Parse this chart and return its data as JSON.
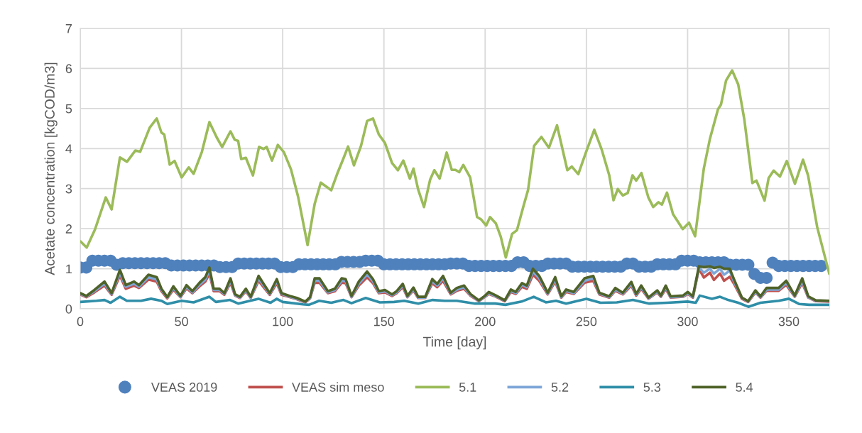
{
  "chart_data": {
    "type": "line",
    "xlabel": "Time [day]",
    "ylabel": "Acetate concentration [kgCOD/m3]",
    "xlim": [
      0,
      370
    ],
    "xticks": [
      0,
      50,
      100,
      150,
      200,
      250,
      300,
      350
    ],
    "ylim": [
      0,
      7
    ],
    "yticks": [
      0,
      1,
      2,
      3,
      4,
      5,
      6,
      7
    ],
    "grid": true,
    "legend": "bottom",
    "line_style": "solid",
    "series": [
      {
        "name": "VEAS 2019",
        "type": "scatter",
        "marker": "circle",
        "color": "#4f81bd",
        "x": [
          0,
          3,
          6,
          9,
          12,
          15,
          18,
          21,
          24,
          27,
          30,
          33,
          36,
          39,
          42,
          45,
          48,
          51,
          54,
          57,
          60,
          63,
          66,
          69,
          72,
          75,
          78,
          81,
          84,
          87,
          90,
          93,
          96,
          99,
          102,
          105,
          108,
          111,
          114,
          117,
          120,
          123,
          126,
          129,
          132,
          135,
          138,
          141,
          144,
          147,
          150,
          153,
          156,
          159,
          162,
          165,
          168,
          171,
          174,
          177,
          180,
          183,
          186,
          189,
          192,
          195,
          198,
          201,
          204,
          207,
          210,
          213,
          216,
          219,
          222,
          225,
          228,
          231,
          234,
          237,
          240,
          243,
          246,
          249,
          252,
          255,
          258,
          261,
          264,
          267,
          270,
          273,
          276,
          279,
          282,
          285,
          288,
          291,
          294,
          297,
          300,
          303,
          306,
          309,
          312,
          315,
          318,
          321,
          324,
          327,
          330,
          333,
          336,
          339,
          342,
          345,
          348,
          351,
          354,
          357,
          360,
          363,
          366
        ],
        "values": [
          1.03,
          1.03,
          1.2,
          1.2,
          1.2,
          1.2,
          1.1,
          1.14,
          1.14,
          1.14,
          1.14,
          1.14,
          1.14,
          1.14,
          1.14,
          1.08,
          1.08,
          1.08,
          1.08,
          1.08,
          1.08,
          1.08,
          1.08,
          1.04,
          1.04,
          1.04,
          1.13,
          1.13,
          1.13,
          1.13,
          1.13,
          1.13,
          1.13,
          1.04,
          1.04,
          1.04,
          1.11,
          1.11,
          1.11,
          1.11,
          1.11,
          1.11,
          1.11,
          1.17,
          1.17,
          1.17,
          1.17,
          1.2,
          1.2,
          1.2,
          1.11,
          1.11,
          1.11,
          1.11,
          1.11,
          1.11,
          1.11,
          1.11,
          1.11,
          1.11,
          1.11,
          1.13,
          1.13,
          1.13,
          1.07,
          1.07,
          1.07,
          1.07,
          1.07,
          1.07,
          1.07,
          1.07,
          1.16,
          1.16,
          1.07,
          1.07,
          1.07,
          1.13,
          1.13,
          1.13,
          1.13,
          1.05,
          1.05,
          1.05,
          1.05,
          1.05,
          1.05,
          1.05,
          1.05,
          1.05,
          1.13,
          1.13,
          1.05,
          1.05,
          1.05,
          1.11,
          1.11,
          1.11,
          1.11,
          1.2,
          1.2,
          1.2,
          1.16,
          1.16,
          1.16,
          1.16,
          1.16,
          1.1,
          1.1,
          1.1,
          1.1,
          0.87,
          0.77,
          0.77,
          1.15,
          1.07,
          1.07,
          1.07,
          1.07,
          1.07,
          1.07,
          1.07,
          1.07
        ]
      },
      {
        "name": "VEAS sim meso",
        "color": "#c0504d",
        "x": [
          0,
          3,
          7,
          12,
          15.5,
          19.6,
          22.5,
          26.6,
          29,
          33.7,
          37.8,
          40.1,
          43,
          46,
          49.5,
          52.5,
          55.4,
          58.9,
          61.8,
          63.8,
          65.9,
          68.8,
          71.2,
          74.2,
          76.5,
          78.9,
          81.8,
          84.2,
          88.1,
          90.6,
          93.6,
          97.1,
          99.4,
          103.5,
          107,
          111.2,
          113.5,
          115.8,
          118.2,
          122.3,
          125.8,
          129.1,
          131.1,
          134,
          137.6,
          141.7,
          144.6,
          147.5,
          150.5,
          154,
          156.3,
          159.3,
          161.6,
          164.6,
          166.9,
          170.4,
          173.9,
          176.3,
          179.2,
          183,
          186,
          189.6,
          192.7,
          196.9,
          200,
          201.8,
          205.4,
          209.7,
          212.7,
          215.1,
          218.2,
          220.6,
          223.6,
          226.7,
          230.9,
          234.6,
          237.6,
          240,
          243.7,
          249.1,
          253.4,
          256.4,
          261.3,
          264.3,
          268,
          272.2,
          274.6,
          277.1,
          280.7,
          285,
          286.8,
          289.2,
          291.6,
          297.7,
          300.1,
          302.6,
          305.6,
          308,
          311,
          313,
          316,
          318,
          320.8,
          323.2,
          326.8,
          329.9,
          333.5,
          336,
          339,
          345,
          348.7,
          352.9,
          356.6,
          359.6,
          363.3,
          370
        ],
        "values": [
          0.36,
          0.29,
          0.41,
          0.58,
          0.35,
          0.83,
          0.5,
          0.58,
          0.52,
          0.73,
          0.68,
          0.44,
          0.26,
          0.48,
          0.29,
          0.51,
          0.39,
          0.56,
          0.68,
          0.88,
          0.44,
          0.44,
          0.35,
          0.65,
          0.33,
          0.27,
          0.44,
          0.27,
          0.7,
          0.54,
          0.35,
          0.64,
          0.35,
          0.29,
          0.24,
          0.16,
          0.26,
          0.65,
          0.65,
          0.39,
          0.44,
          0.65,
          0.64,
          0.29,
          0.58,
          0.79,
          0.64,
          0.39,
          0.41,
          0.32,
          0.39,
          0.54,
          0.29,
          0.46,
          0.27,
          0.27,
          0.64,
          0.54,
          0.7,
          0.36,
          0.45,
          0.5,
          0.33,
          0.19,
          0.3,
          0.37,
          0.3,
          0.19,
          0.42,
          0.37,
          0.55,
          0.5,
          0.85,
          0.7,
          0.36,
          0.68,
          0.28,
          0.42,
          0.37,
          0.65,
          0.7,
          0.36,
          0.28,
          0.45,
          0.36,
          0.58,
          0.33,
          0.5,
          0.25,
          0.41,
          0.3,
          0.5,
          0.28,
          0.3,
          0.37,
          0.28,
          1.0,
          0.78,
          0.9,
          0.72,
          0.88,
          0.7,
          0.8,
          0.6,
          0.25,
          0.17,
          0.41,
          0.28,
          0.45,
          0.45,
          0.6,
          0.3,
          0.65,
          0.28,
          0.19,
          0.18
        ]
      },
      {
        "name": "5.1",
        "color": "#9bbb59",
        "x": [
          0.2,
          3.2,
          7.3,
          12.6,
          15.5,
          19.6,
          23.1,
          27.2,
          29.6,
          34.3,
          37.8,
          40.1,
          41.5,
          44.2,
          46.6,
          50.1,
          53.6,
          56,
          60.1,
          63.8,
          67.4,
          70.1,
          74.2,
          76.3,
          78,
          79.5,
          81.8,
          85.3,
          88.3,
          90.6,
          92.1,
          94.7,
          97.6,
          100.6,
          104.1,
          107.6,
          112.3,
          115.8,
          118.8,
          124,
          127,
          129.9,
          132.3,
          135.2,
          138.7,
          141.7,
          144.6,
          147.5,
          150.5,
          154,
          156.9,
          159.6,
          162.8,
          164.6,
          166.9,
          169.8,
          172.8,
          174.9,
          177.5,
          181,
          183.5,
          185.3,
          187.2,
          189.2,
          192.6,
          196,
          198,
          200.5,
          202.4,
          205.3,
          207.7,
          210.2,
          213.3,
          215.7,
          218.8,
          221.2,
          224.2,
          227.8,
          231.5,
          235.5,
          240.6,
          242.8,
          246,
          249.6,
          253.9,
          257.6,
          261.3,
          263.4,
          265.5,
          268,
          270.4,
          272.8,
          274.6,
          277.2,
          280.6,
          283,
          285.6,
          287.3,
          289.8,
          292.8,
          297.6,
          300.7,
          303.7,
          308,
          311,
          315,
          316.5,
          319,
          322,
          325,
          328,
          332,
          334,
          338,
          340,
          342.5,
          345.6,
          349,
          353,
          357,
          359.5,
          364,
          370
        ],
        "values": [
          1.68,
          1.53,
          1.98,
          2.78,
          2.48,
          3.78,
          3.67,
          3.95,
          3.92,
          4.52,
          4.75,
          4.4,
          4.35,
          3.6,
          3.69,
          3.28,
          3.53,
          3.37,
          3.92,
          4.66,
          4.28,
          4.04,
          4.43,
          4.22,
          4.19,
          3.74,
          3.77,
          3.33,
          4.04,
          3.99,
          4.04,
          3.7,
          4.09,
          3.91,
          3.48,
          2.8,
          1.59,
          2.62,
          3.15,
          2.96,
          3.38,
          3.74,
          4.05,
          3.58,
          4.07,
          4.69,
          4.75,
          4.35,
          4.14,
          3.64,
          3.46,
          3.7,
          3.25,
          3.5,
          2.98,
          2.54,
          3.22,
          3.46,
          3.25,
          3.9,
          3.47,
          3.47,
          3.41,
          3.59,
          3.28,
          2.29,
          2.23,
          2.08,
          2.29,
          2.13,
          1.8,
          1.28,
          1.87,
          1.96,
          2.54,
          2.97,
          4.07,
          4.29,
          4.02,
          4.58,
          3.46,
          3.55,
          3.36,
          3.88,
          4.47,
          3.97,
          3.33,
          2.71,
          2.99,
          2.83,
          2.89,
          3.33,
          3.2,
          3.39,
          2.78,
          2.54,
          2.66,
          2.6,
          2.9,
          2.36,
          1.99,
          2.15,
          1.81,
          3.5,
          4.24,
          4.98,
          5.1,
          5.7,
          5.95,
          5.6,
          4.73,
          3.14,
          3.2,
          2.7,
          3.26,
          3.45,
          3.3,
          3.69,
          3.12,
          3.72,
          3.33,
          2.04,
          0.87
        ]
      },
      {
        "name": "5.2",
        "color": "#7ea6d8",
        "x": [
          0,
          3,
          7,
          12,
          15.5,
          19.6,
          22.5,
          26.6,
          29,
          33.7,
          37.8,
          40.1,
          43,
          46,
          49.5,
          52.5,
          55.4,
          58.9,
          61.8,
          63.8,
          65.9,
          68.8,
          71.2,
          74.2,
          76.5,
          78.9,
          81.8,
          84.2,
          88.1,
          90.6,
          93.6,
          97.1,
          99.4,
          103.5,
          107,
          111.2,
          113.5,
          115.8,
          118.2,
          122.3,
          125.8,
          129.1,
          131.1,
          134,
          137.6,
          141.7,
          144.6,
          147.5,
          150.5,
          154,
          156.3,
          159.3,
          161.6,
          164.6,
          166.9,
          170.4,
          173.9,
          176.3,
          179.2,
          183,
          186,
          189.6,
          192.7,
          196.9,
          200,
          201.8,
          205.4,
          209.7,
          212.7,
          215.1,
          218.2,
          220.6,
          223.6,
          226.7,
          230.9,
          234.6,
          237.6,
          240,
          243.7,
          249.1,
          253.4,
          256.4,
          261.3,
          264.3,
          268,
          272.2,
          274.6,
          277.1,
          280.7,
          285,
          286.8,
          289.2,
          291.6,
          297.7,
          300.1,
          302.6,
          305.6,
          308,
          311,
          313,
          316,
          318,
          320.8,
          323.2,
          326.8,
          329.9,
          333.5,
          336,
          339,
          345,
          348.7,
          352.9,
          356.6,
          359.6,
          363.3,
          370
        ],
        "values": [
          0.37,
          0.31,
          0.44,
          0.63,
          0.37,
          0.9,
          0.55,
          0.63,
          0.55,
          0.79,
          0.73,
          0.47,
          0.28,
          0.52,
          0.3,
          0.55,
          0.41,
          0.6,
          0.73,
          0.96,
          0.47,
          0.47,
          0.37,
          0.7,
          0.34,
          0.28,
          0.47,
          0.28,
          0.76,
          0.58,
          0.37,
          0.69,
          0.37,
          0.3,
          0.25,
          0.17,
          0.27,
          0.7,
          0.7,
          0.41,
          0.47,
          0.7,
          0.69,
          0.3,
          0.63,
          0.86,
          0.69,
          0.41,
          0.44,
          0.34,
          0.41,
          0.58,
          0.3,
          0.49,
          0.28,
          0.28,
          0.69,
          0.58,
          0.76,
          0.38,
          0.48,
          0.54,
          0.35,
          0.2,
          0.31,
          0.39,
          0.31,
          0.2,
          0.45,
          0.39,
          0.6,
          0.54,
          0.93,
          0.76,
          0.38,
          0.73,
          0.29,
          0.45,
          0.39,
          0.7,
          0.76,
          0.38,
          0.29,
          0.48,
          0.38,
          0.62,
          0.35,
          0.54,
          0.26,
          0.43,
          0.31,
          0.54,
          0.29,
          0.31,
          0.39,
          0.29,
          1.03,
          0.9,
          1.0,
          0.88,
          1.0,
          0.85,
          0.95,
          0.65,
          0.27,
          0.18,
          0.43,
          0.29,
          0.48,
          0.48,
          0.65,
          0.31,
          0.7,
          0.29,
          0.2,
          0.19
        ]
      },
      {
        "name": "5.3",
        "color": "#2f8ea8",
        "x": [
          0,
          8,
          12,
          15,
          19.6,
          23,
          30,
          35,
          40,
          43,
          50,
          56,
          63.8,
          67,
          74,
          78,
          88,
          94,
          97,
          100,
          110,
          113,
          118,
          124,
          130,
          134,
          141,
          148,
          155,
          160,
          167,
          174,
          180,
          186,
          195,
          205,
          210,
          218,
          224,
          230,
          235,
          240,
          250,
          257,
          265,
          273,
          281,
          290,
          300,
          304,
          306,
          312,
          316,
          320,
          325,
          330,
          336,
          345,
          350,
          355,
          360,
          370
        ],
        "values": [
          0.17,
          0.2,
          0.22,
          0.15,
          0.3,
          0.2,
          0.2,
          0.25,
          0.2,
          0.12,
          0.2,
          0.16,
          0.3,
          0.17,
          0.22,
          0.13,
          0.25,
          0.15,
          0.25,
          0.17,
          0.11,
          0.1,
          0.2,
          0.15,
          0.22,
          0.14,
          0.27,
          0.16,
          0.17,
          0.2,
          0.13,
          0.22,
          0.2,
          0.2,
          0.13,
          0.13,
          0.1,
          0.18,
          0.3,
          0.16,
          0.2,
          0.13,
          0.25,
          0.15,
          0.16,
          0.22,
          0.13,
          0.15,
          0.18,
          0.15,
          0.33,
          0.25,
          0.3,
          0.22,
          0.15,
          0.05,
          0.15,
          0.2,
          0.25,
          0.12,
          0.1,
          0.1
        ]
      },
      {
        "name": "5.4",
        "color": "#4f6228",
        "x": [
          0,
          3,
          7,
          12,
          15.5,
          19.6,
          22.5,
          26.6,
          29,
          33.7,
          37.8,
          40.1,
          43,
          46,
          49.5,
          52.5,
          55.4,
          58.9,
          61.8,
          63.8,
          65.9,
          68.8,
          71.2,
          74.2,
          76.5,
          78.9,
          81.8,
          84.2,
          88.1,
          90.6,
          93.6,
          97.1,
          99.4,
          103.5,
          107,
          111.2,
          113.5,
          115.8,
          118.2,
          122.3,
          125.8,
          129.1,
          131.1,
          134,
          137.6,
          141.7,
          144.6,
          147.5,
          150.5,
          154,
          156.3,
          159.3,
          161.6,
          164.6,
          166.9,
          170.4,
          173.9,
          176.3,
          179.2,
          183,
          186,
          189.6,
          192.7,
          196.9,
          200,
          201.8,
          205.4,
          209.7,
          212.7,
          215.1,
          218.2,
          220.6,
          223.6,
          226.7,
          230.9,
          234.6,
          237.6,
          240,
          243.7,
          249.1,
          253.4,
          256.4,
          261.3,
          264.3,
          268,
          272.2,
          274.6,
          277.1,
          280.7,
          285,
          286.8,
          289.2,
          291.6,
          297.7,
          300.1,
          302.6,
          305.6,
          308,
          311,
          313,
          316,
          318,
          320.8,
          323.2,
          326.8,
          329.9,
          333.5,
          336,
          339,
          345,
          348.7,
          352.9,
          356.6,
          359.6,
          363.3,
          370
        ],
        "values": [
          0.39,
          0.32,
          0.47,
          0.68,
          0.39,
          0.97,
          0.59,
          0.68,
          0.59,
          0.85,
          0.79,
          0.5,
          0.29,
          0.56,
          0.32,
          0.59,
          0.44,
          0.65,
          0.79,
          1.03,
          0.5,
          0.5,
          0.39,
          0.76,
          0.36,
          0.3,
          0.5,
          0.3,
          0.82,
          0.62,
          0.39,
          0.74,
          0.39,
          0.32,
          0.27,
          0.18,
          0.29,
          0.76,
          0.76,
          0.44,
          0.5,
          0.76,
          0.74,
          0.32,
          0.68,
          0.93,
          0.74,
          0.44,
          0.47,
          0.36,
          0.44,
          0.62,
          0.32,
          0.53,
          0.3,
          0.3,
          0.74,
          0.62,
          0.82,
          0.4,
          0.52,
          0.58,
          0.37,
          0.21,
          0.33,
          0.42,
          0.33,
          0.21,
          0.48,
          0.42,
          0.64,
          0.58,
          1.0,
          0.82,
          0.4,
          0.79,
          0.31,
          0.48,
          0.42,
          0.76,
          0.82,
          0.4,
          0.31,
          0.52,
          0.4,
          0.67,
          0.37,
          0.58,
          0.28,
          0.46,
          0.33,
          0.58,
          0.31,
          0.33,
          0.42,
          0.31,
          1.06,
          1.04,
          1.06,
          1.02,
          1.05,
          1.0,
          1.0,
          0.7,
          0.28,
          0.19,
          0.46,
          0.31,
          0.52,
          0.52,
          0.7,
          0.33,
          0.76,
          0.31,
          0.21,
          0.2
        ]
      }
    ]
  }
}
